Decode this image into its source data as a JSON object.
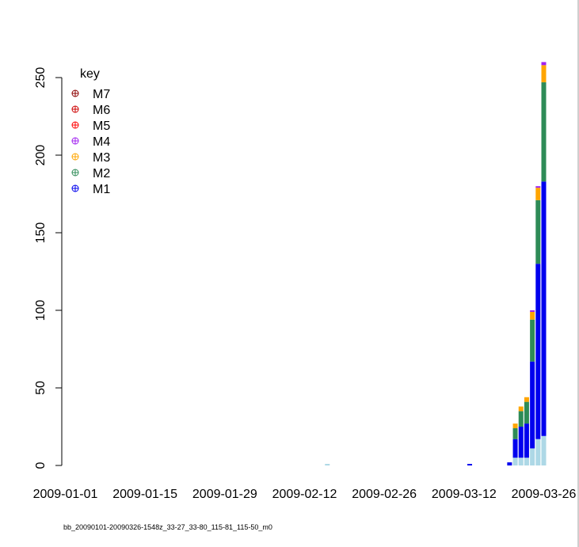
{
  "chart_data": {
    "type": "bar",
    "stacked": true,
    "x_type": "date",
    "x_ticks": [
      "2009-01-01",
      "2009-01-15",
      "2009-01-29",
      "2009-02-12",
      "2009-02-26",
      "2009-03-12",
      "2009-03-26"
    ],
    "y_ticks": [
      0,
      50,
      100,
      150,
      200,
      250
    ],
    "xlim": [
      "2009-01-01",
      "2009-03-26"
    ],
    "ylim": [
      0,
      250
    ],
    "grid": false,
    "legend": {
      "title": "key",
      "placement": "top-left",
      "order": [
        "M7",
        "M6",
        "M5",
        "M4",
        "M3",
        "M2",
        "M1"
      ]
    },
    "colors": {
      "Base": "#add8e6",
      "M1": "#0000ee",
      "M2": "#2e8b57",
      "M3": "#ffa500",
      "M4": "#a020f0",
      "M5": "#ff0000",
      "M6": "#cd0000",
      "M7": "#8b0000"
    },
    "dates": [
      "2009-02-16",
      "2009-03-13",
      "2009-03-20",
      "2009-03-21",
      "2009-03-22",
      "2009-03-23",
      "2009-03-24",
      "2009-03-25",
      "2009-03-26"
    ],
    "series": [
      {
        "key": "Base",
        "values": [
          1,
          0,
          0,
          5,
          5,
          5,
          11,
          17,
          19
        ]
      },
      {
        "name": "M1",
        "values": [
          0,
          1,
          2,
          12,
          20,
          22,
          56,
          113,
          164
        ]
      },
      {
        "name": "M2",
        "values": [
          0,
          0,
          0,
          7,
          10,
          14,
          27,
          41,
          64
        ]
      },
      {
        "name": "M3",
        "values": [
          0,
          0,
          0,
          3,
          3,
          3,
          5,
          8,
          11
        ]
      },
      {
        "name": "M4",
        "values": [
          0,
          0,
          0,
          0,
          0,
          0,
          1,
          1,
          2
        ]
      },
      {
        "name": "M5",
        "values": [
          0,
          0,
          0,
          0,
          0,
          0,
          0,
          0,
          0
        ]
      },
      {
        "name": "M6",
        "values": [
          0,
          0,
          0,
          0,
          0,
          0,
          0,
          0,
          0
        ]
      },
      {
        "name": "M7",
        "values": [
          0,
          0,
          0,
          0,
          0,
          0,
          0,
          0,
          0
        ]
      }
    ]
  },
  "footnote": "bb_20090101-20090326-1548z_33-27_33-80_115-81_115-50_m0"
}
